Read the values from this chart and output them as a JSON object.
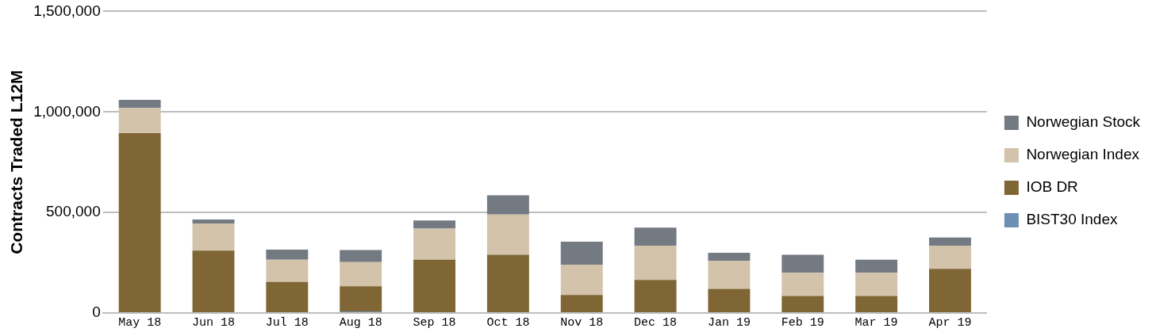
{
  "chart_data": {
    "type": "bar",
    "stacked": true,
    "ylabel": "Contracts Traded L12M",
    "categories": [
      "May 18",
      "Jun 18",
      "Jul 18",
      "Aug 18",
      "Sep 18",
      "Oct 18",
      "Nov 18",
      "Dec 18",
      "Jan 19",
      "Feb 19",
      "Mar 19",
      "Apr 19"
    ],
    "series": [
      {
        "name": "BIST30 Index",
        "color": "#6e8fb4",
        "values": [
          0,
          0,
          0,
          8000,
          0,
          0,
          0,
          0,
          0,
          0,
          0,
          0
        ]
      },
      {
        "name": "IOB DR",
        "color": "#7f6634",
        "values": [
          895000,
          310000,
          155000,
          125000,
          265000,
          290000,
          90000,
          165000,
          120000,
          85000,
          85000,
          220000
        ]
      },
      {
        "name": "Norwegian Index",
        "color": "#d3c3ab",
        "values": [
          125000,
          135000,
          110000,
          120000,
          155000,
          200000,
          150000,
          170000,
          140000,
          115000,
          115000,
          115000
        ]
      },
      {
        "name": "Norwegian Stock",
        "color": "#737a82",
        "values": [
          40000,
          20000,
          50000,
          60000,
          40000,
          95000,
          115000,
          90000,
          40000,
          90000,
          65000,
          40000
        ]
      }
    ],
    "ylim": [
      0,
      1500000
    ],
    "yticks": [
      {
        "value": 0,
        "label": "0"
      },
      {
        "value": 500000,
        "label": "500,000"
      },
      {
        "value": 1000000,
        "label": "1,000,000"
      },
      {
        "value": 1500000,
        "label": "1,500,000"
      }
    ],
    "grid": "y",
    "legend": "right"
  }
}
